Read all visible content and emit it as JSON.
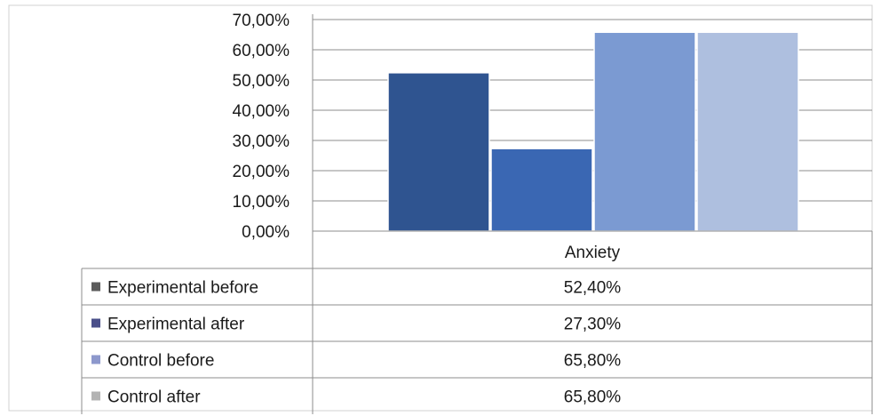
{
  "chart_data": {
    "type": "bar",
    "categories": [
      "Anxiety"
    ],
    "series": [
      {
        "name": "Experimental before",
        "values": [
          52.4
        ],
        "label": "52,40%",
        "color": "#2f5490"
      },
      {
        "name": "Experimental after",
        "values": [
          27.3
        ],
        "label": "27,30%",
        "color": "#3a67b3"
      },
      {
        "name": "Control before",
        "values": [
          65.8
        ],
        "label": "65,80%",
        "color": "#7b9ad2"
      },
      {
        "name": "Control after",
        "values": [
          65.8
        ],
        "label": "65,80%",
        "color": "#aebfdf"
      }
    ],
    "ylim": [
      0,
      70
    ],
    "yticks": [
      {
        "value": 0,
        "label": "0,00%"
      },
      {
        "value": 10,
        "label": "10,00%"
      },
      {
        "value": 20,
        "label": "20,00%"
      },
      {
        "value": 30,
        "label": "30,00%"
      },
      {
        "value": 40,
        "label": "40,00%"
      },
      {
        "value": 50,
        "label": "50,00%"
      },
      {
        "value": 60,
        "label": "60,00%"
      },
      {
        "value": 70,
        "label": "70,00%"
      }
    ],
    "grid": true,
    "legend": "data-table-below",
    "title": "",
    "xlabel": "",
    "ylabel": ""
  },
  "legend_key_colors": [
    "#5b5b5b",
    "#4a4f8a",
    "#8d98cc",
    "#b3b3b3"
  ]
}
